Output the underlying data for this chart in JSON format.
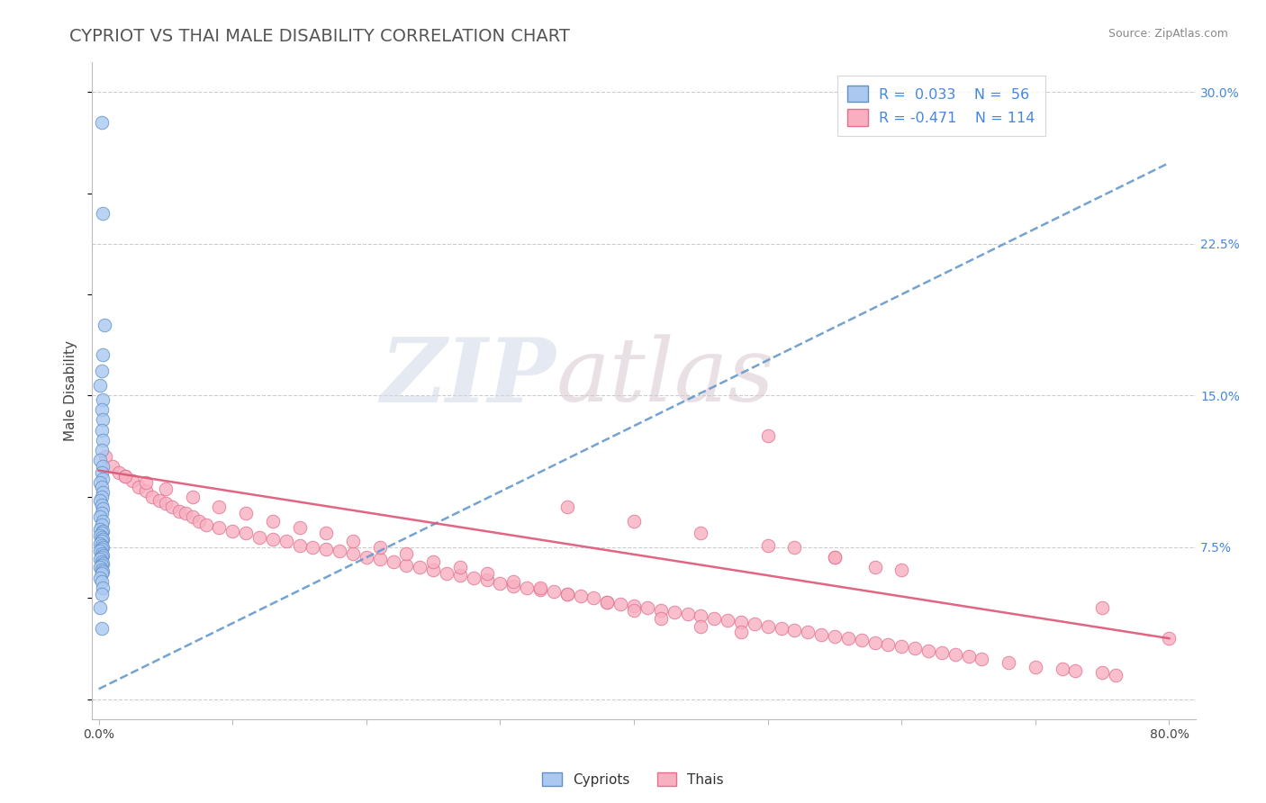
{
  "title": "CYPRIOT VS THAI MALE DISABILITY CORRELATION CHART",
  "source": "Source: ZipAtlas.com",
  "ylabel": "Male Disability",
  "xlim": [
    -0.005,
    0.82
  ],
  "ylim": [
    -0.01,
    0.315
  ],
  "xticks": [
    0.0,
    0.1,
    0.2,
    0.3,
    0.4,
    0.5,
    0.6,
    0.7,
    0.8
  ],
  "xtick_labels": [
    "0.0%",
    "",
    "",
    "",
    "",
    "",
    "",
    "",
    "80.0%"
  ],
  "ytick_right": [
    0.0,
    0.075,
    0.15,
    0.225,
    0.3
  ],
  "ytick_right_labels": [
    "",
    "7.5%",
    "15.0%",
    "22.5%",
    "30.0%"
  ],
  "cypriot_color": "#aac8f0",
  "cypriot_edge": "#6090c8",
  "thai_color": "#f8b0c0",
  "thai_edge": "#e07090",
  "trend_cypriot_color": "#6699cc",
  "trend_thai_color": "#dd5577",
  "cyp_trend_x0": 0.0,
  "cyp_trend_y0": 0.005,
  "cyp_trend_x1": 0.8,
  "cyp_trend_y1": 0.265,
  "thai_trend_x0": 0.0,
  "thai_trend_y0": 0.113,
  "thai_trend_x1": 0.8,
  "thai_trend_y1": 0.03,
  "R_cypriot": 0.033,
  "N_cypriot": 56,
  "R_thai": -0.471,
  "N_thai": 114,
  "legend_label_cypriot": "Cypriots",
  "legend_label_thai": "Thais",
  "title_fontsize": 14,
  "label_fontsize": 11,
  "tick_fontsize": 10,
  "cypriot_x": [
    0.002,
    0.003,
    0.004,
    0.003,
    0.002,
    0.001,
    0.003,
    0.002,
    0.003,
    0.002,
    0.003,
    0.002,
    0.001,
    0.003,
    0.002,
    0.003,
    0.001,
    0.002,
    0.003,
    0.002,
    0.001,
    0.002,
    0.003,
    0.002,
    0.001,
    0.003,
    0.002,
    0.001,
    0.003,
    0.002,
    0.001,
    0.002,
    0.003,
    0.002,
    0.001,
    0.002,
    0.003,
    0.002,
    0.001,
    0.002,
    0.003,
    0.002,
    0.001,
    0.002,
    0.003,
    0.002,
    0.001,
    0.002,
    0.003,
    0.002,
    0.001,
    0.002,
    0.003,
    0.002,
    0.001,
    0.002
  ],
  "cypriot_y": [
    0.285,
    0.24,
    0.185,
    0.17,
    0.162,
    0.155,
    0.148,
    0.143,
    0.138,
    0.133,
    0.128,
    0.123,
    0.118,
    0.115,
    0.112,
    0.109,
    0.107,
    0.105,
    0.102,
    0.1,
    0.098,
    0.096,
    0.094,
    0.092,
    0.09,
    0.088,
    0.086,
    0.084,
    0.083,
    0.082,
    0.081,
    0.08,
    0.079,
    0.078,
    0.077,
    0.076,
    0.075,
    0.074,
    0.073,
    0.072,
    0.071,
    0.07,
    0.069,
    0.068,
    0.067,
    0.066,
    0.065,
    0.064,
    0.063,
    0.062,
    0.06,
    0.058,
    0.055,
    0.052,
    0.045,
    0.035
  ],
  "thai_x": [
    0.005,
    0.01,
    0.015,
    0.02,
    0.025,
    0.03,
    0.035,
    0.04,
    0.045,
    0.05,
    0.055,
    0.06,
    0.065,
    0.07,
    0.075,
    0.08,
    0.09,
    0.1,
    0.11,
    0.12,
    0.13,
    0.14,
    0.15,
    0.16,
    0.17,
    0.18,
    0.19,
    0.2,
    0.21,
    0.22,
    0.23,
    0.24,
    0.25,
    0.26,
    0.27,
    0.28,
    0.29,
    0.3,
    0.31,
    0.32,
    0.33,
    0.34,
    0.35,
    0.36,
    0.37,
    0.38,
    0.39,
    0.4,
    0.41,
    0.42,
    0.43,
    0.44,
    0.45,
    0.46,
    0.47,
    0.48,
    0.49,
    0.5,
    0.51,
    0.52,
    0.53,
    0.54,
    0.55,
    0.56,
    0.57,
    0.58,
    0.59,
    0.6,
    0.61,
    0.62,
    0.63,
    0.64,
    0.65,
    0.66,
    0.68,
    0.7,
    0.72,
    0.73,
    0.75,
    0.76,
    0.02,
    0.035,
    0.05,
    0.07,
    0.09,
    0.11,
    0.13,
    0.15,
    0.17,
    0.19,
    0.21,
    0.23,
    0.25,
    0.27,
    0.29,
    0.31,
    0.33,
    0.35,
    0.38,
    0.4,
    0.42,
    0.45,
    0.48,
    0.5,
    0.52,
    0.55,
    0.58,
    0.35,
    0.4,
    0.45,
    0.5,
    0.55,
    0.6,
    0.8,
    0.75
  ],
  "thai_y": [
    0.12,
    0.115,
    0.112,
    0.11,
    0.108,
    0.105,
    0.103,
    0.1,
    0.098,
    0.097,
    0.095,
    0.093,
    0.092,
    0.09,
    0.088,
    0.086,
    0.085,
    0.083,
    0.082,
    0.08,
    0.079,
    0.078,
    0.076,
    0.075,
    0.074,
    0.073,
    0.072,
    0.07,
    0.069,
    0.068,
    0.066,
    0.065,
    0.064,
    0.062,
    0.061,
    0.06,
    0.059,
    0.057,
    0.056,
    0.055,
    0.054,
    0.053,
    0.052,
    0.051,
    0.05,
    0.048,
    0.047,
    0.046,
    0.045,
    0.044,
    0.043,
    0.042,
    0.041,
    0.04,
    0.039,
    0.038,
    0.037,
    0.036,
    0.035,
    0.034,
    0.033,
    0.032,
    0.031,
    0.03,
    0.029,
    0.028,
    0.027,
    0.026,
    0.025,
    0.024,
    0.023,
    0.022,
    0.021,
    0.02,
    0.018,
    0.016,
    0.015,
    0.014,
    0.013,
    0.012,
    0.11,
    0.107,
    0.104,
    0.1,
    0.095,
    0.092,
    0.088,
    0.085,
    0.082,
    0.078,
    0.075,
    0.072,
    0.068,
    0.065,
    0.062,
    0.058,
    0.055,
    0.052,
    0.048,
    0.044,
    0.04,
    0.036,
    0.033,
    0.13,
    0.075,
    0.07,
    0.065,
    0.095,
    0.088,
    0.082,
    0.076,
    0.07,
    0.064,
    0.03,
    0.045
  ]
}
